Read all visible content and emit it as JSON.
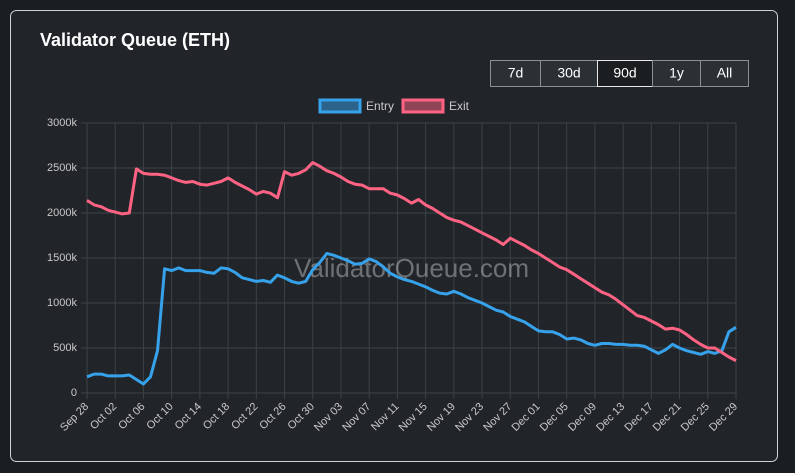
{
  "title": "Validator Queue (ETH)",
  "buttons": [
    "7d",
    "30d",
    "90d",
    "1y",
    "All"
  ],
  "active_button": 2,
  "chart_data": {
    "type": "line",
    "watermark": "ValidatorQueue.com",
    "categories": [
      "Sep 28",
      null,
      null,
      null,
      "Oct 02",
      null,
      null,
      null,
      "Oct 06",
      null,
      null,
      null,
      "Oct 10",
      null,
      null,
      null,
      "Oct 14",
      null,
      null,
      null,
      "Oct 18",
      null,
      null,
      null,
      "Oct 22",
      null,
      null,
      null,
      "Oct 26",
      null,
      null,
      null,
      "Oct 30",
      null,
      null,
      null,
      "Nov 03",
      null,
      null,
      null,
      "Nov 07",
      null,
      null,
      null,
      "Nov 11",
      null,
      null,
      null,
      "Nov 15",
      null,
      null,
      null,
      "Nov 19",
      null,
      null,
      null,
      "Nov 23",
      null,
      null,
      null,
      "Nov 27",
      null,
      null,
      null,
      "Dec 01",
      null,
      null,
      null,
      "Dec 05",
      null,
      null,
      null,
      "Dec 09",
      null,
      null,
      null,
      "Dec 13",
      null,
      null,
      null,
      "Dec 17",
      null,
      null,
      null,
      "Dec 21",
      null,
      null,
      null,
      "Dec 25",
      null,
      null,
      null,
      "Dec 29"
    ],
    "series": [
      {
        "name": "Entry",
        "color": "#36a2eb",
        "values": [
          180,
          210,
          210,
          190,
          190,
          190,
          200,
          150,
          100,
          180,
          470,
          1380,
          1360,
          1390,
          1360,
          1360,
          1360,
          1340,
          1330,
          1390,
          1380,
          1340,
          1280,
          1260,
          1240,
          1250,
          1230,
          1310,
          1280,
          1240,
          1220,
          1240,
          1370,
          1450,
          1550,
          1530,
          1500,
          1470,
          1430,
          1440,
          1490,
          1460,
          1400,
          1330,
          1290,
          1260,
          1240,
          1210,
          1180,
          1140,
          1110,
          1100,
          1130,
          1100,
          1060,
          1030,
          1000,
          960,
          920,
          900,
          850,
          820,
          790,
          740,
          690,
          680,
          680,
          650,
          600,
          610,
          590,
          550,
          530,
          550,
          550,
          540,
          540,
          530,
          530,
          520,
          480,
          440,
          480,
          540,
          500,
          470,
          450,
          430,
          460,
          440,
          470,
          680,
          730
        ]
      },
      {
        "name": "Exit",
        "color": "#ff6384",
        "values": [
          2140,
          2090,
          2070,
          2030,
          2010,
          1990,
          2000,
          2490,
          2440,
          2430,
          2430,
          2420,
          2390,
          2360,
          2340,
          2350,
          2320,
          2310,
          2330,
          2350,
          2390,
          2340,
          2300,
          2260,
          2210,
          2240,
          2220,
          2170,
          2460,
          2420,
          2440,
          2480,
          2560,
          2520,
          2470,
          2440,
          2400,
          2350,
          2320,
          2310,
          2270,
          2270,
          2270,
          2220,
          2200,
          2160,
          2110,
          2150,
          2090,
          2050,
          2000,
          1950,
          1920,
          1900,
          1860,
          1820,
          1780,
          1740,
          1700,
          1650,
          1720,
          1680,
          1640,
          1590,
          1550,
          1500,
          1450,
          1400,
          1370,
          1320,
          1270,
          1220,
          1170,
          1120,
          1090,
          1040,
          980,
          920,
          860,
          840,
          800,
          760,
          710,
          720,
          700,
          650,
          590,
          540,
          500,
          500,
          450,
          400,
          360
        ]
      }
    ],
    "ylim": [
      0,
      3000
    ],
    "yticks": [
      0,
      {
        "value": 500,
        "label": "500k"
      },
      {
        "value": 1000,
        "label": "1000k"
      },
      {
        "value": 1500,
        "label": "1500k"
      },
      {
        "value": 2000,
        "label": "2000k"
      },
      {
        "value": 2500,
        "label": "2500k"
      },
      {
        "value": 3000,
        "label": "3000k"
      }
    ],
    "grid": true
  }
}
